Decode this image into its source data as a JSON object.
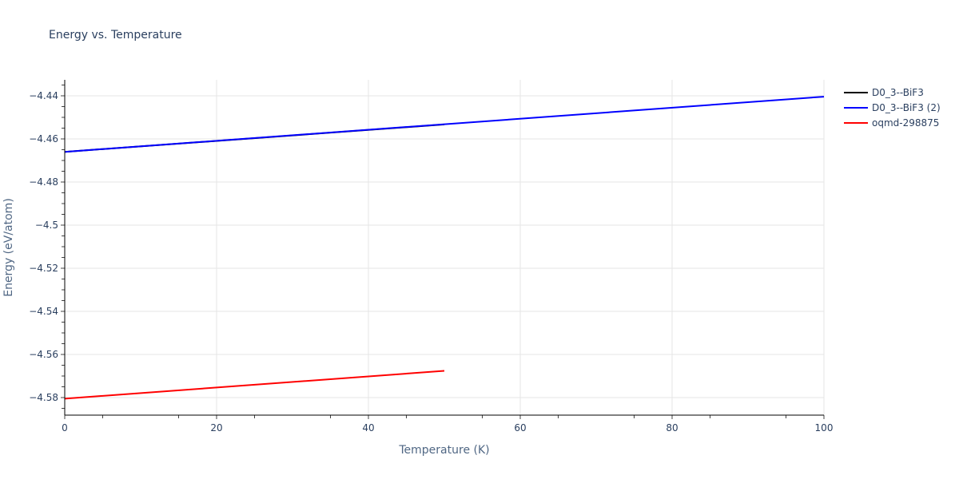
{
  "chart_data": {
    "type": "line",
    "title": "Energy vs. Temperature",
    "xlabel": "Temperature (K)",
    "ylabel": "Energy (eV/atom)",
    "xlim": [
      0,
      100
    ],
    "ylim": [
      -4.5875,
      -4.4325
    ],
    "grid": true,
    "legend_position": "right",
    "x_ticks": [
      0,
      20,
      40,
      60,
      80,
      100
    ],
    "y_ticks": [
      -4.44,
      -4.46,
      -4.48,
      -4.5,
      -4.52,
      -4.54,
      -4.56,
      -4.58
    ],
    "series": [
      {
        "name": "D0_3--BiF3",
        "color": "#000000",
        "x": [
          0,
          50
        ],
        "values": [
          -4.466,
          -4.4533
        ]
      },
      {
        "name": "D0_3--BiF3 (2)",
        "color": "#0000ff",
        "x": [
          0,
          100
        ],
        "values": [
          -4.466,
          -4.4404
        ]
      },
      {
        "name": "oqmd-298875",
        "color": "#ff0000",
        "x": [
          0,
          50
        ],
        "values": [
          -4.5805,
          -4.5676
        ]
      }
    ]
  },
  "labels": {
    "title": "Energy vs. Temperature",
    "xlabel": "Temperature (K)",
    "ylabel": "Energy (eV/atom)",
    "x_ticks": [
      "0",
      "20",
      "40",
      "60",
      "80",
      "100"
    ],
    "y_ticks": [
      "−4.44",
      "−4.46",
      "−4.48",
      "−4.5",
      "−4.52",
      "−4.54",
      "−4.56",
      "−4.58"
    ],
    "legend": [
      "D0_3--BiF3",
      "D0_3--BiF3 (2)",
      "oqmd-298875"
    ]
  }
}
